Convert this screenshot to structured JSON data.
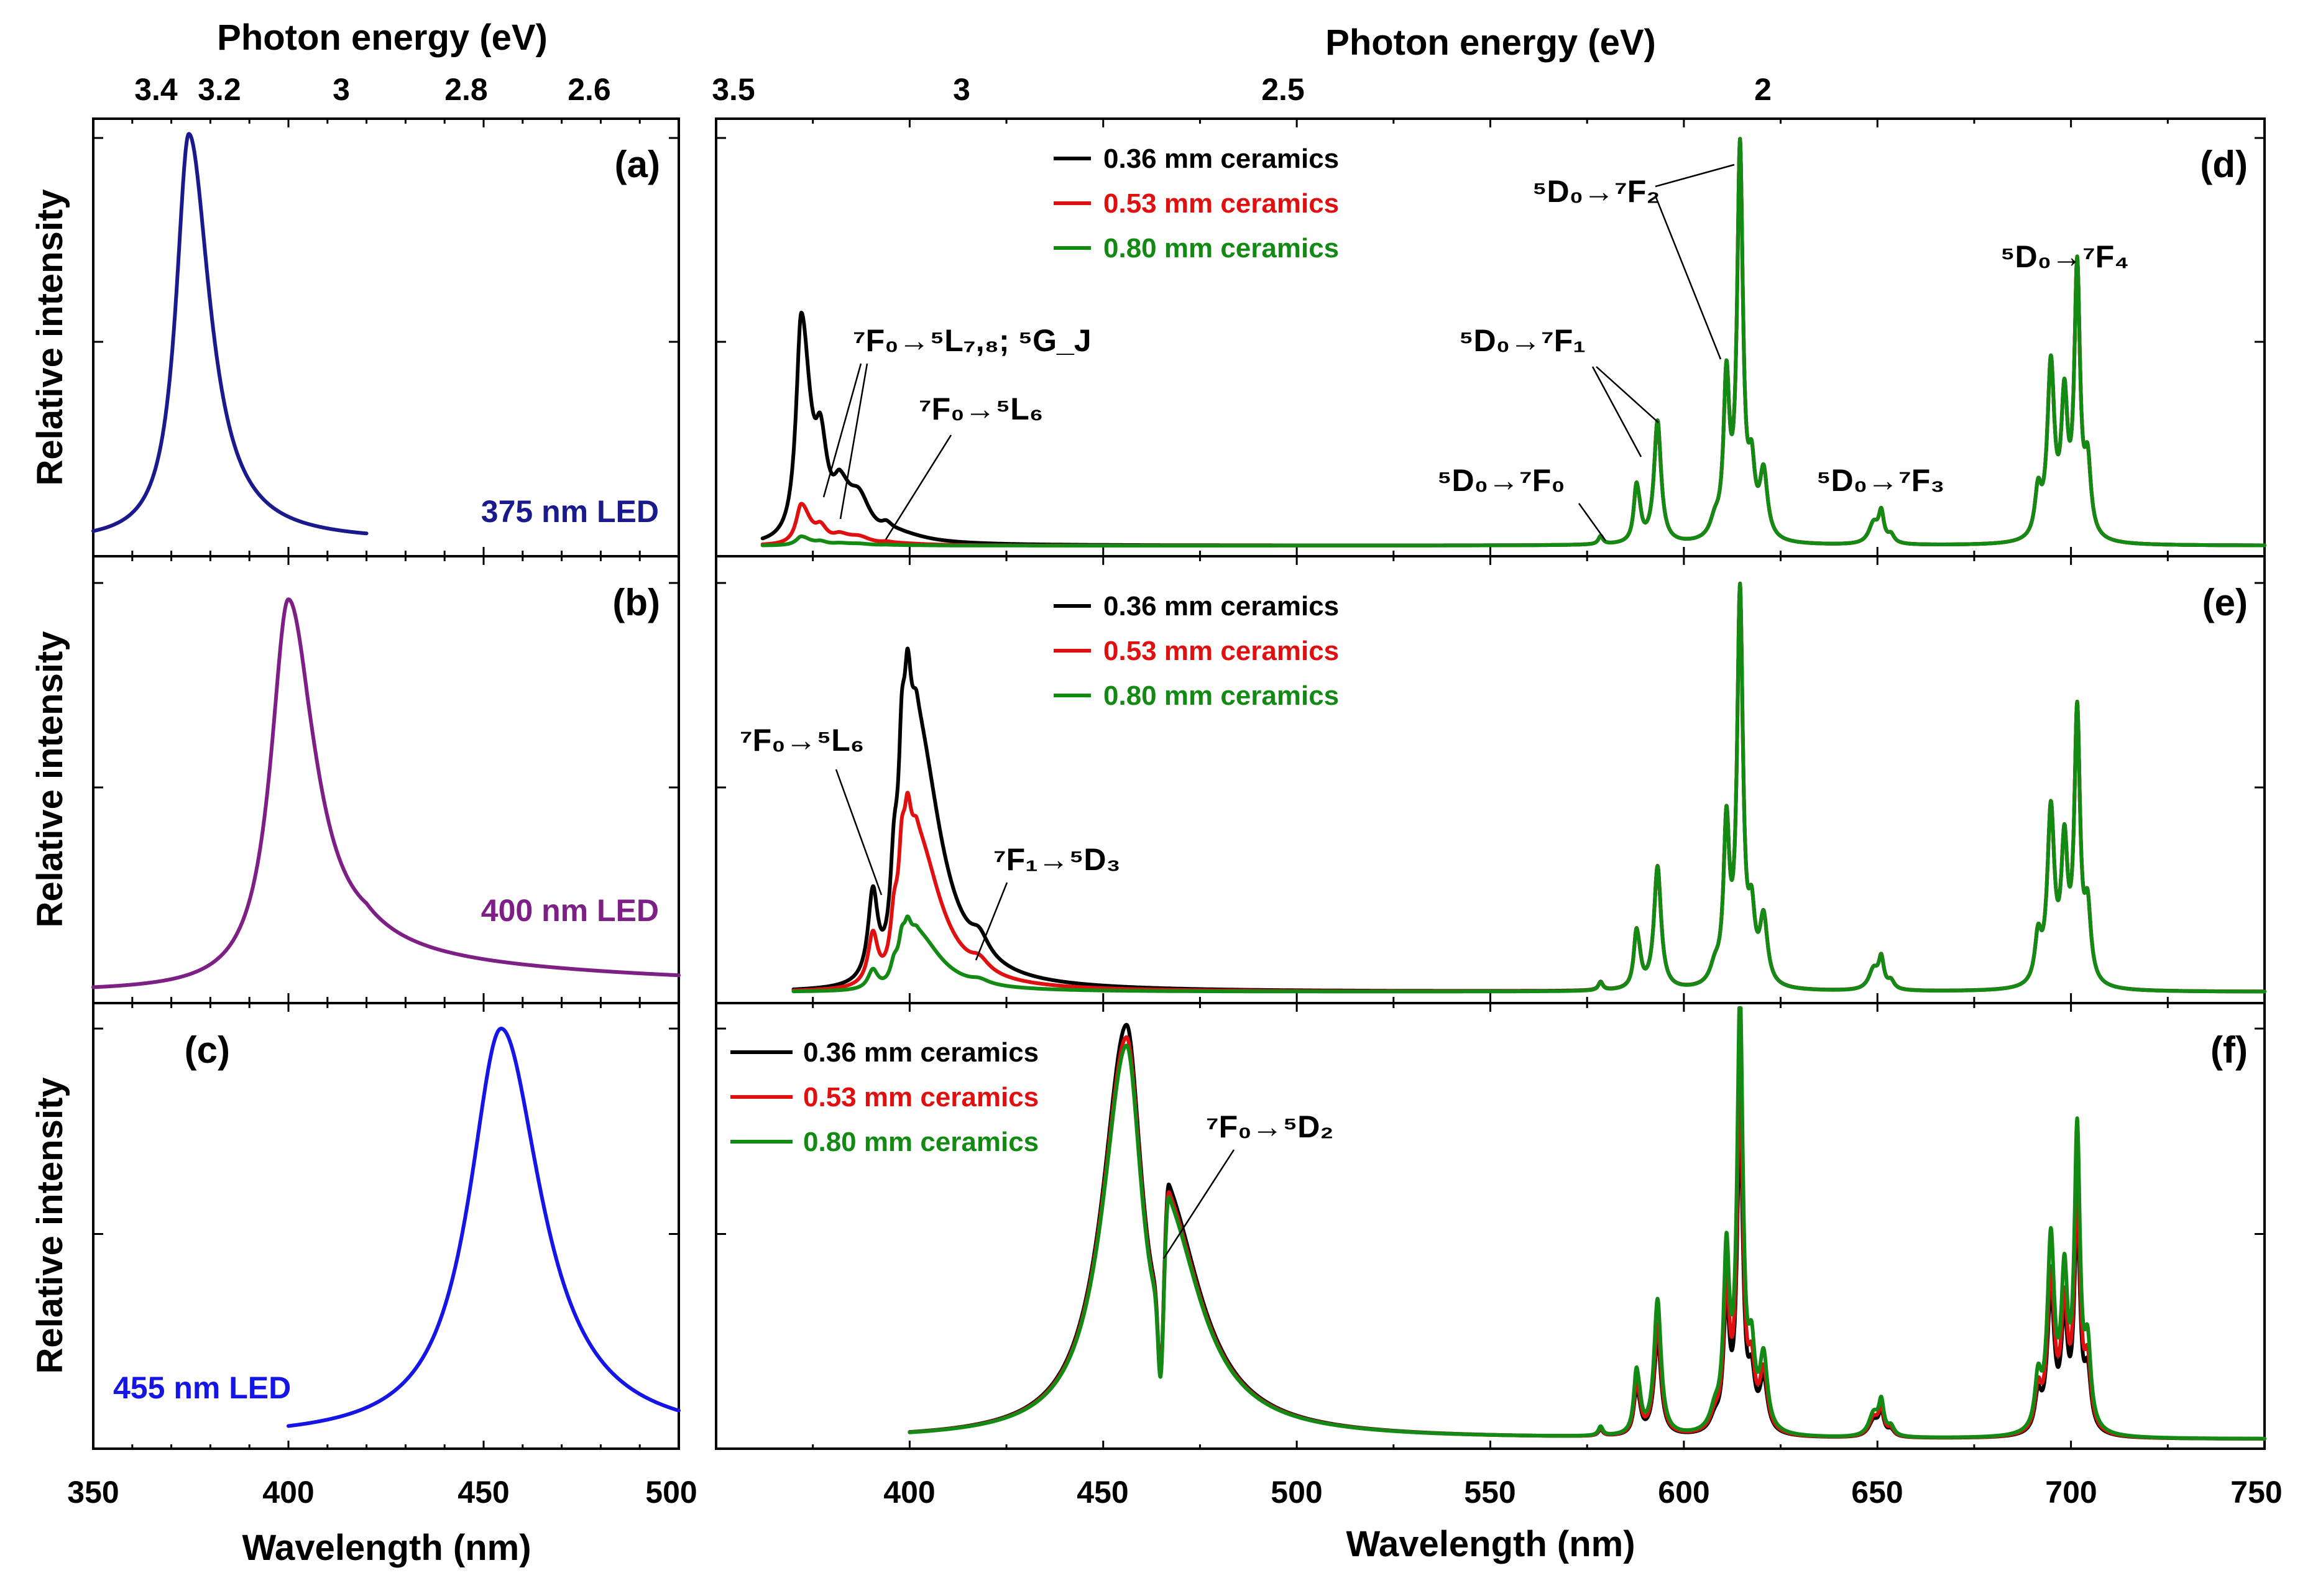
{
  "chart_data": [
    {
      "id": "a",
      "type": "line",
      "panel_label": "(a)",
      "source_label": "375 nm LED",
      "source_color": "#1a1a8c",
      "xlabel": "Wavelength (nm)",
      "ylabel": "Relative intensity",
      "top_xlabel": "Photon energy (eV)",
      "xlim": [
        350,
        500
      ],
      "ylim": [
        0,
        1.05
      ],
      "x_ticks": [
        "350",
        "400",
        "450",
        "500"
      ],
      "top_ticks": [
        "3.4",
        "3.2",
        "3",
        "2.8",
        "2.6"
      ],
      "series": [
        {
          "name": "375 nm LED",
          "color": "#1a1a8c",
          "peaks": [
            {
              "center": 374.5,
              "amp": 1.0,
              "sl": 4.0,
              "sr": 6.5
            }
          ],
          "x_range": [
            350,
            420
          ],
          "baseline": 0.01
        }
      ]
    },
    {
      "id": "b",
      "type": "line",
      "panel_label": "(b)",
      "source_label": "400 nm LED",
      "source_color": "#7e1f86",
      "ylabel": "Relative intensity",
      "xlim": [
        350,
        500
      ],
      "ylim": [
        0,
        1.05
      ],
      "series": [
        {
          "name": "400 nm LED",
          "color": "#7e1f86",
          "peaks": [
            {
              "center": 400,
              "amp": 0.96,
              "sl": 5.5,
              "sr": 8.5
            }
          ],
          "tail": {
            "start": 405,
            "amp": 0.08,
            "decay": 110
          },
          "x_range": [
            350,
            500
          ],
          "baseline": 0.0
        }
      ]
    },
    {
      "id": "c",
      "type": "line",
      "panel_label": "(c)",
      "source_label": "455 nm LED",
      "source_color": "#1515e6",
      "ylabel": "Relative intensity",
      "xlim": [
        350,
        500
      ],
      "ylim": [
        0,
        1.05
      ],
      "series": [
        {
          "name": "455 nm LED",
          "color": "#1515e6",
          "peaks": [
            {
              "center": 454.5,
              "amp": 1.0,
              "sl": 10.0,
              "sr": 12.5
            }
          ],
          "x_range": [
            400,
            500
          ],
          "baseline": 0.0
        }
      ]
    },
    {
      "id": "d",
      "type": "line",
      "panel_label": "(d)",
      "xlabel": "Wavelength (nm)",
      "top_xlabel": "Photon energy (eV)",
      "xlim": [
        350,
        750
      ],
      "ylim": [
        0,
        1.05
      ],
      "x_ticks": [
        "400",
        "450",
        "500",
        "550",
        "600",
        "650",
        "700",
        "750"
      ],
      "top_ticks": [
        "3.5",
        "3",
        "2.5",
        "2"
      ],
      "legend": [
        "0.36 mm ceramics",
        "0.53 mm ceramics",
        "0.80 mm ceramics"
      ],
      "colors": [
        "#000000",
        "#e01010",
        "#138a13"
      ],
      "x_range": [
        362,
        750
      ],
      "excitation": [
        {
          "center": 372,
          "amp": 0.55,
          "sl": 1.6,
          "sr": 2.8
        },
        {
          "center": 377,
          "amp": 0.17,
          "sl": 1.5,
          "sr": 2.0
        },
        {
          "center": 382,
          "amp": 0.1,
          "sl": 2.0,
          "sr": 3.5
        },
        {
          "center": 387,
          "amp": 0.08,
          "sl": 3.0,
          "sr": 3.5
        },
        {
          "center": 394,
          "amp": 0.02,
          "sl": 1.5,
          "sr": 2.0
        },
        {
          "center": 398,
          "amp": 0.015,
          "sl": 4.0,
          "sr": 8.0
        }
      ],
      "excitation_scale": [
        1.0,
        0.18,
        0.04
      ],
      "annotations": [
        {
          "text": "⁷F₀→⁵L₇,₈; ⁵G_J"
        },
        {
          "text": "⁷F₀→⁵L₆"
        },
        {
          "text": "⁵D₀→⁷F₀"
        },
        {
          "text": "⁵D₀→⁷F₁"
        },
        {
          "text": "⁵D₀→⁷F₂"
        },
        {
          "text": "⁵D₀→⁷F₃"
        },
        {
          "text": "⁵D₀→⁷F₄"
        }
      ]
    },
    {
      "id": "e",
      "type": "line",
      "panel_label": "(e)",
      "xlim": [
        350,
        750
      ],
      "ylim": [
        0,
        1.05
      ],
      "legend": [
        "0.36 mm ceramics",
        "0.53 mm ceramics",
        "0.80 mm ceramics"
      ],
      "colors": [
        "#000000",
        "#e01010",
        "#138a13"
      ],
      "x_range": [
        370,
        750
      ],
      "excitation": [
        {
          "center": 390.5,
          "amp": 0.21,
          "sl": 1.5,
          "sr": 1.5
        },
        {
          "center": 396,
          "amp": 0.22,
          "sl": 1.2,
          "sr": 1.4
        },
        {
          "center": 398,
          "amp": 0.38,
          "sl": 1.0,
          "sr": 1.3
        },
        {
          "center": 399.5,
          "amp": 0.34,
          "sl": 1.0,
          "sr": 1.3
        },
        {
          "center": 402,
          "amp": 0.6,
          "sl": 2.5,
          "sr": 7.5
        },
        {
          "center": 418,
          "amp": 0.045,
          "sl": 2.5,
          "sr": 3.0
        }
      ],
      "excitation_scale": [
        1.0,
        0.58,
        0.22
      ],
      "annotations": [
        {
          "text": "⁷F₀→⁵L₆"
        },
        {
          "text": "⁷F₁→⁵D₃"
        }
      ]
    },
    {
      "id": "f",
      "type": "line",
      "panel_label": "(f)",
      "xlim": [
        350,
        750
      ],
      "ylim": [
        0,
        1.05
      ],
      "legend": [
        "0.36 mm ceramics",
        "0.53 mm ceramics",
        "0.80 mm ceramics"
      ],
      "colors": [
        "#000000",
        "#e01010",
        "#138a13"
      ],
      "x_range": [
        400,
        750
      ],
      "excitation": [
        {
          "center": 456,
          "amp": 1.0,
          "sl": 7.5,
          "sr": 5.0
        },
        {
          "center": 467,
          "amp": 0.45,
          "sl": 1.6,
          "sr": 11.0
        }
      ],
      "dip": {
        "center": 464.8,
        "width": 0.9,
        "depth": 0.6
      },
      "excitation_scale": [
        1.0,
        0.97,
        0.95
      ],
      "emission_scale": [
        0.78,
        0.9,
        1.1
      ],
      "annotations": [
        {
          "text": "⁷F₀→⁵D₂"
        }
      ]
    }
  ],
  "europium_emission": [
    {
      "center": 578.5,
      "amp": 0.02,
      "w": 0.7
    },
    {
      "center": 587.7,
      "amp": 0.12,
      "w": 0.8
    },
    {
      "center": 588.5,
      "amp": 0.04,
      "w": 0.8
    },
    {
      "center": 593.2,
      "amp": 0.3,
      "w": 1.1
    },
    {
      "center": 608.0,
      "amp": 0.04,
      "w": 1.5
    },
    {
      "center": 611.0,
      "amp": 0.38,
      "w": 0.9
    },
    {
      "center": 614.5,
      "amp": 0.95,
      "w": 0.9
    },
    {
      "center": 617.5,
      "amp": 0.15,
      "w": 1.0
    },
    {
      "center": 620.6,
      "amp": 0.16,
      "w": 1.2
    },
    {
      "center": 649.0,
      "amp": 0.05,
      "w": 1.5
    },
    {
      "center": 651.0,
      "amp": 0.07,
      "w": 0.8
    },
    {
      "center": 653.5,
      "amp": 0.02,
      "w": 1.0
    },
    {
      "center": 691.5,
      "amp": 0.11,
      "w": 1.0
    },
    {
      "center": 694.8,
      "amp": 0.42,
      "w": 1.1
    },
    {
      "center": 698.3,
      "amp": 0.32,
      "w": 1.0
    },
    {
      "center": 701.6,
      "amp": 0.65,
      "w": 0.9
    },
    {
      "center": 704.3,
      "amp": 0.17,
      "w": 1.0
    }
  ]
}
